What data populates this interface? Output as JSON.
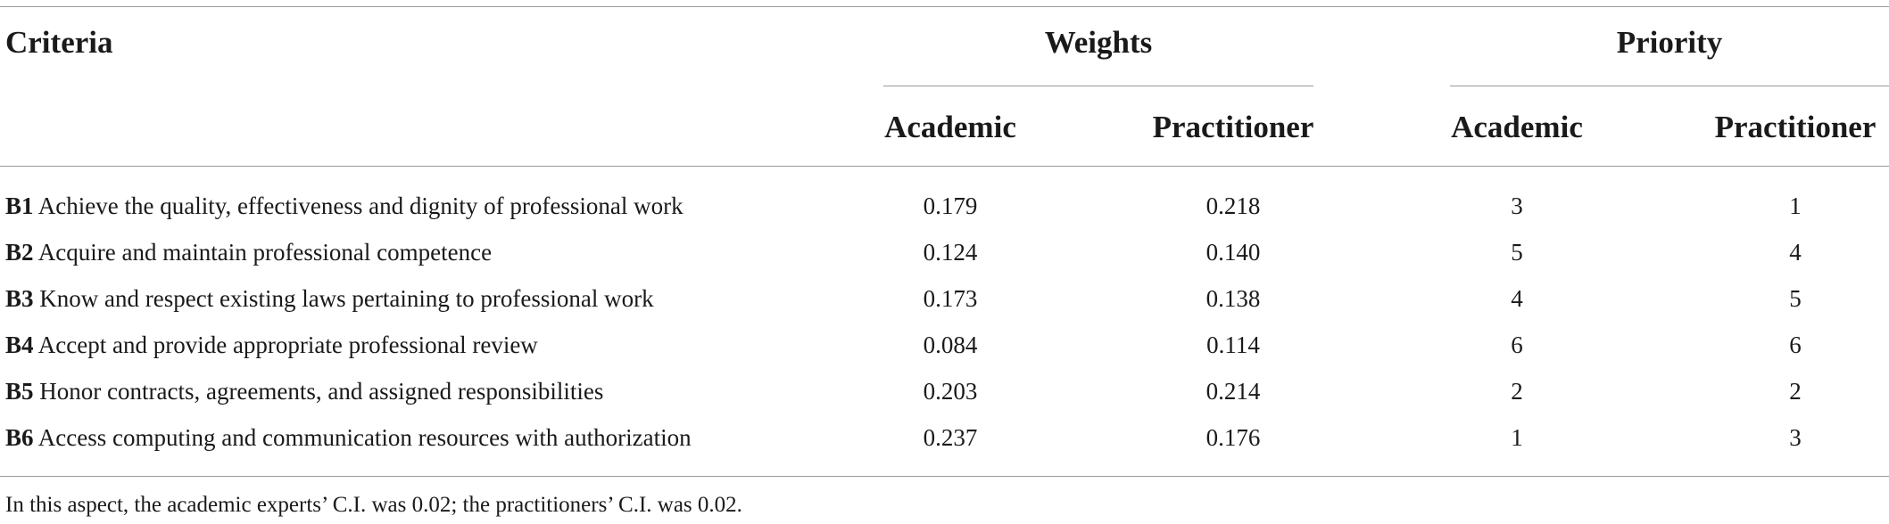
{
  "table": {
    "header": {
      "criteria": "Criteria",
      "weights": "Weights",
      "priority": "Priority",
      "weights_academic": "Academic",
      "weights_practitioner": "Practitioner",
      "priority_academic": "Academic",
      "priority_practitioner": "Practitioner"
    },
    "rows": [
      {
        "code": "B1",
        "criterion": "Achieve the quality, effectiveness and dignity of professional work",
        "weight_academic": "0.179",
        "weight_practitioner": "0.218",
        "priority_academic": "3",
        "priority_practitioner": "1"
      },
      {
        "code": "B2",
        "criterion": "Acquire and maintain professional competence",
        "weight_academic": "0.124",
        "weight_practitioner": "0.140",
        "priority_academic": "5",
        "priority_practitioner": "4"
      },
      {
        "code": "B3",
        "criterion": "Know and respect existing laws pertaining to professional work",
        "weight_academic": "0.173",
        "weight_practitioner": "0.138",
        "priority_academic": "4",
        "priority_practitioner": "5"
      },
      {
        "code": "B4",
        "criterion": "Accept and provide appropriate professional review",
        "weight_academic": "0.084",
        "weight_practitioner": "0.114",
        "priority_academic": "6",
        "priority_practitioner": "6"
      },
      {
        "code": "B5",
        "criterion": "Honor contracts, agreements, and assigned responsibilities",
        "weight_academic": "0.203",
        "weight_practitioner": "0.214",
        "priority_academic": "2",
        "priority_practitioner": "2"
      },
      {
        "code": "B6",
        "criterion": "Access computing and communication resources with authorization",
        "weight_academic": "0.237",
        "weight_practitioner": "0.176",
        "priority_academic": "1",
        "priority_practitioner": "3"
      }
    ],
    "footnote": "In this aspect, the academic experts’ C.I. was 0.02; the practitioners’ C.I. was 0.02."
  }
}
